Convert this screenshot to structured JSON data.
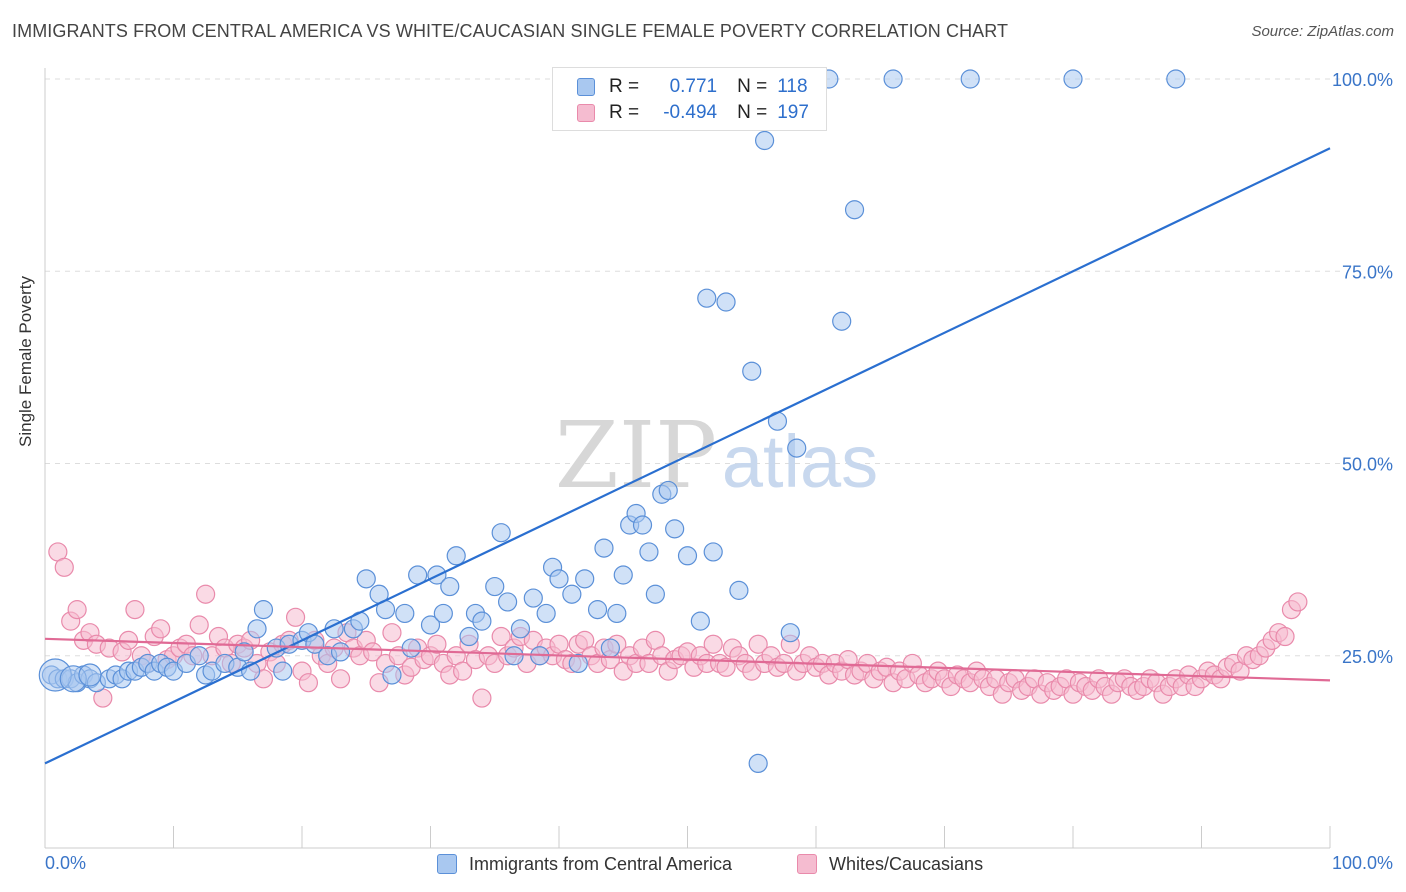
{
  "title": "IMMIGRANTS FROM CENTRAL AMERICA VS WHITE/CAUCASIAN SINGLE FEMALE POVERTY CORRELATION CHART",
  "source": "Source: ZipAtlas.com",
  "watermark": {
    "zip": "ZIP",
    "atlas": "atlas"
  },
  "colors": {
    "blue_fill": "#a9c8f0",
    "blue_stroke": "#5b90d8",
    "blue_line": "#2a6fd0",
    "pink_fill": "#f5bcd0",
    "pink_stroke": "#e98aab",
    "pink_line": "#e06a95",
    "axis_text": "#3a75c8",
    "grid": "#dddddd"
  },
  "legend": {
    "blue": {
      "r_label": "R =",
      "r_value": "0.771",
      "n_label": "N =",
      "n_value": "118"
    },
    "pink": {
      "r_label": "R =",
      "r_value": "-0.494",
      "n_label": "N =",
      "n_value": "197"
    }
  },
  "bottom_legend": {
    "blue": "Immigrants from Central America",
    "pink": "Whites/Caucasians"
  },
  "chart_data": {
    "type": "scatter",
    "xlabel": "",
    "ylabel": "Single Female Poverty",
    "xlim": [
      0,
      100
    ],
    "ylim": [
      0,
      105
    ],
    "x_tick_labels": [
      "0.0%",
      "100.0%"
    ],
    "y_tick_values": [
      25,
      50,
      75,
      100
    ],
    "y_tick_labels": [
      "25.0%",
      "50.0%",
      "75.0%",
      "100.0%"
    ],
    "grid": "horizontal dashed",
    "legend_position": "top-center",
    "series": [
      {
        "name": "Immigrants from Central America",
        "color": "blue",
        "trendline": {
          "x": [
            0,
            100
          ],
          "y": [
            11,
            91
          ]
        },
        "points": [
          [
            0.5,
            22.5
          ],
          [
            1,
            22
          ],
          [
            1.5,
            22
          ],
          [
            2,
            22
          ],
          [
            2.5,
            21.5
          ],
          [
            3,
            22.5
          ],
          [
            3.5,
            22
          ],
          [
            4,
            21.5
          ],
          [
            5,
            22
          ],
          [
            5.5,
            22.5
          ],
          [
            6,
            22
          ],
          [
            6.5,
            23
          ],
          [
            7,
            23
          ],
          [
            7.5,
            23.5
          ],
          [
            8,
            24
          ],
          [
            8.5,
            23
          ],
          [
            9,
            24
          ],
          [
            9.5,
            23.5
          ],
          [
            10,
            23
          ],
          [
            11,
            24
          ],
          [
            12,
            25
          ],
          [
            12.5,
            22.5
          ],
          [
            13,
            23
          ],
          [
            14,
            24
          ],
          [
            15,
            23.5
          ],
          [
            15.5,
            25.5
          ],
          [
            16,
            23
          ],
          [
            16.5,
            28.5
          ],
          [
            17,
            31
          ],
          [
            18,
            26
          ],
          [
            18.5,
            23
          ],
          [
            19,
            26.5
          ],
          [
            20,
            27
          ],
          [
            20.5,
            28
          ],
          [
            21,
            26.5
          ],
          [
            22,
            25
          ],
          [
            22.5,
            28.5
          ],
          [
            23,
            25.5
          ],
          [
            24,
            28.5
          ],
          [
            24.5,
            29.5
          ],
          [
            25,
            35
          ],
          [
            26,
            33
          ],
          [
            26.5,
            31
          ],
          [
            27,
            22.5
          ],
          [
            28,
            30.5
          ],
          [
            28.5,
            26
          ],
          [
            29,
            35.5
          ],
          [
            30,
            29
          ],
          [
            30.5,
            35.5
          ],
          [
            31,
            30.5
          ],
          [
            31.5,
            34
          ],
          [
            32,
            38
          ],
          [
            33,
            27.5
          ],
          [
            33.5,
            30.5
          ],
          [
            34,
            29.5
          ],
          [
            35,
            34
          ],
          [
            35.5,
            41
          ],
          [
            36,
            32
          ],
          [
            36.5,
            25
          ],
          [
            37,
            28.5
          ],
          [
            38,
            32.5
          ],
          [
            38.5,
            25
          ],
          [
            39,
            30.5
          ],
          [
            39.5,
            36.5
          ],
          [
            40,
            35
          ],
          [
            41,
            33
          ],
          [
            41.5,
            24
          ],
          [
            42,
            35
          ],
          [
            43,
            31
          ],
          [
            43.5,
            39
          ],
          [
            44,
            26
          ],
          [
            44.5,
            30.5
          ],
          [
            45,
            35.5
          ],
          [
            45.5,
            42
          ],
          [
            46,
            43.5
          ],
          [
            46.5,
            42
          ],
          [
            47,
            38.5
          ],
          [
            47.5,
            33
          ],
          [
            48,
            46
          ],
          [
            48.5,
            46.5
          ],
          [
            49,
            41.5
          ],
          [
            50,
            38
          ],
          [
            51,
            29.5
          ],
          [
            51.5,
            71.5
          ],
          [
            52,
            38.5
          ],
          [
            53,
            71
          ],
          [
            54,
            33.5
          ],
          [
            55,
            62
          ],
          [
            55.5,
            11
          ],
          [
            56,
            92
          ],
          [
            57,
            55.5
          ],
          [
            58,
            28
          ],
          [
            58.5,
            52
          ],
          [
            60,
            100
          ],
          [
            61,
            100
          ],
          [
            62,
            68.5
          ],
          [
            63,
            83
          ],
          [
            66,
            100
          ],
          [
            72,
            100
          ],
          [
            80,
            100
          ],
          [
            88,
            100
          ]
        ]
      },
      {
        "name": "Whites/Caucasians",
        "color": "pink",
        "trendline": {
          "x": [
            0,
            100
          ],
          "y": [
            27.2,
            21.8
          ]
        },
        "points": [
          [
            1,
            38.5
          ],
          [
            1.5,
            36.5
          ],
          [
            2,
            29.5
          ],
          [
            2.5,
            31
          ],
          [
            3,
            27
          ],
          [
            3.5,
            28
          ],
          [
            4,
            26.5
          ],
          [
            4.5,
            19.5
          ],
          [
            5,
            26
          ],
          [
            6,
            25.5
          ],
          [
            6.5,
            27
          ],
          [
            7,
            31
          ],
          [
            7.5,
            25
          ],
          [
            8,
            24
          ],
          [
            8.5,
            27.5
          ],
          [
            9,
            28.5
          ],
          [
            9.5,
            24.5
          ],
          [
            10,
            25
          ],
          [
            10.5,
            26
          ],
          [
            11,
            26.5
          ],
          [
            11.5,
            25
          ],
          [
            12,
            29
          ],
          [
            12.5,
            33
          ],
          [
            13,
            25
          ],
          [
            13.5,
            27.5
          ],
          [
            14,
            26
          ],
          [
            14.5,
            24
          ],
          [
            15,
            26.5
          ],
          [
            15.5,
            26
          ],
          [
            16,
            27
          ],
          [
            16.5,
            24
          ],
          [
            17,
            22
          ],
          [
            17.5,
            25.5
          ],
          [
            18,
            24
          ],
          [
            18.5,
            26.5
          ],
          [
            19,
            27
          ],
          [
            19.5,
            30
          ],
          [
            20,
            23
          ],
          [
            20.5,
            21.5
          ],
          [
            21,
            27
          ],
          [
            21.5,
            25
          ],
          [
            22,
            24
          ],
          [
            22.5,
            26
          ],
          [
            23,
            22
          ],
          [
            23.5,
            28
          ],
          [
            24,
            26
          ],
          [
            24.5,
            25
          ],
          [
            25,
            27
          ],
          [
            25.5,
            25.5
          ],
          [
            26,
            21.5
          ],
          [
            26.5,
            24
          ],
          [
            27,
            28
          ],
          [
            27.5,
            25
          ],
          [
            28,
            22.5
          ],
          [
            28.5,
            23.5
          ],
          [
            29,
            26
          ],
          [
            29.5,
            24.5
          ],
          [
            30,
            25
          ],
          [
            30.5,
            26.5
          ],
          [
            31,
            24
          ],
          [
            31.5,
            22.5
          ],
          [
            32,
            25
          ],
          [
            32.5,
            23
          ],
          [
            33,
            26.5
          ],
          [
            33.5,
            24.5
          ],
          [
            34,
            19.5
          ],
          [
            34.5,
            25
          ],
          [
            35,
            24
          ],
          [
            35.5,
            27.5
          ],
          [
            36,
            25
          ],
          [
            36.5,
            26
          ],
          [
            37,
            27.5
          ],
          [
            37.5,
            24
          ],
          [
            38,
            27
          ],
          [
            38.5,
            25
          ],
          [
            39,
            26
          ],
          [
            39.5,
            25
          ],
          [
            40,
            26.5
          ],
          [
            40.5,
            24.5
          ],
          [
            41,
            24
          ],
          [
            41.5,
            26.5
          ],
          [
            42,
            27
          ],
          [
            42.5,
            25
          ],
          [
            43,
            24
          ],
          [
            43.5,
            26
          ],
          [
            44,
            24.5
          ],
          [
            44.5,
            26.5
          ],
          [
            45,
            23
          ],
          [
            45.5,
            25
          ],
          [
            46,
            24
          ],
          [
            46.5,
            26
          ],
          [
            47,
            24
          ],
          [
            47.5,
            27
          ],
          [
            48,
            25
          ],
          [
            48.5,
            23
          ],
          [
            49,
            24.5
          ],
          [
            49.5,
            25
          ],
          [
            50,
            25.5
          ],
          [
            50.5,
            23.5
          ],
          [
            51,
            25
          ],
          [
            51.5,
            24
          ],
          [
            52,
            26.5
          ],
          [
            52.5,
            24
          ],
          [
            53,
            23.5
          ],
          [
            53.5,
            26
          ],
          [
            54,
            25
          ],
          [
            54.5,
            24
          ],
          [
            55,
            23
          ],
          [
            55.5,
            26.5
          ],
          [
            56,
            24
          ],
          [
            56.5,
            25
          ],
          [
            57,
            23.5
          ],
          [
            57.5,
            24
          ],
          [
            58,
            26.5
          ],
          [
            58.5,
            23
          ],
          [
            59,
            24
          ],
          [
            59.5,
            25
          ],
          [
            60,
            23.5
          ],
          [
            60.5,
            24
          ],
          [
            61,
            22.5
          ],
          [
            61.5,
            24
          ],
          [
            62,
            23
          ],
          [
            62.5,
            24.5
          ],
          [
            63,
            22.5
          ],
          [
            63.5,
            23
          ],
          [
            64,
            24
          ],
          [
            64.5,
            22
          ],
          [
            65,
            23
          ],
          [
            65.5,
            23.5
          ],
          [
            66,
            21.5
          ],
          [
            66.5,
            23
          ],
          [
            67,
            22
          ],
          [
            67.5,
            24
          ],
          [
            68,
            22.5
          ],
          [
            68.5,
            21.5
          ],
          [
            69,
            22
          ],
          [
            69.5,
            23
          ],
          [
            70,
            22
          ],
          [
            70.5,
            21
          ],
          [
            71,
            22.5
          ],
          [
            71.5,
            22
          ],
          [
            72,
            21.5
          ],
          [
            72.5,
            23
          ],
          [
            73,
            22
          ],
          [
            73.5,
            21
          ],
          [
            74,
            22
          ],
          [
            74.5,
            20
          ],
          [
            75,
            21.5
          ],
          [
            75.5,
            22
          ],
          [
            76,
            20.5
          ],
          [
            76.5,
            21
          ],
          [
            77,
            22
          ],
          [
            77.5,
            20
          ],
          [
            78,
            21.5
          ],
          [
            78.5,
            20.5
          ],
          [
            79,
            21
          ],
          [
            79.5,
            22
          ],
          [
            80,
            20
          ],
          [
            80.5,
            21.5
          ],
          [
            81,
            21
          ],
          [
            81.5,
            20.5
          ],
          [
            82,
            22
          ],
          [
            82.5,
            21
          ],
          [
            83,
            20
          ],
          [
            83.5,
            21.5
          ],
          [
            84,
            22
          ],
          [
            84.5,
            21
          ],
          [
            85,
            20.5
          ],
          [
            85.5,
            21
          ],
          [
            86,
            22
          ],
          [
            86.5,
            21.5
          ],
          [
            87,
            20
          ],
          [
            87.5,
            21
          ],
          [
            88,
            22
          ],
          [
            88.5,
            21
          ],
          [
            89,
            22.5
          ],
          [
            89.5,
            21
          ],
          [
            90,
            22
          ],
          [
            90.5,
            23
          ],
          [
            91,
            22.5
          ],
          [
            91.5,
            22
          ],
          [
            92,
            23.5
          ],
          [
            92.5,
            24
          ],
          [
            93,
            23
          ],
          [
            93.5,
            25
          ],
          [
            94,
            24.5
          ],
          [
            94.5,
            25
          ],
          [
            95,
            26
          ],
          [
            95.5,
            27
          ],
          [
            96,
            28
          ],
          [
            96.5,
            27.5
          ],
          [
            97,
            31
          ],
          [
            97.5,
            32
          ]
        ]
      }
    ]
  }
}
